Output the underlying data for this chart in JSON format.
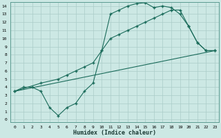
{
  "xlabel": "Humidex (Indice chaleur)",
  "background_color": "#cce8e4",
  "grid_color": "#aaccc8",
  "line_color": "#1a6b5a",
  "xlim": [
    -0.5,
    23.5
  ],
  "ylim": [
    -0.3,
    14.5
  ],
  "xticks": [
    0,
    1,
    2,
    3,
    4,
    5,
    6,
    7,
    8,
    9,
    10,
    11,
    12,
    13,
    14,
    15,
    16,
    17,
    18,
    19,
    20,
    21,
    22,
    23
  ],
  "yticks": [
    0,
    1,
    2,
    3,
    4,
    5,
    6,
    7,
    8,
    9,
    10,
    11,
    12,
    13,
    14
  ],
  "line1_x": [
    0,
    1,
    2,
    3,
    4,
    5,
    6,
    7,
    8,
    9,
    10,
    11,
    12,
    13,
    14,
    15,
    16,
    17,
    18,
    19,
    20,
    21,
    22,
    23
  ],
  "line1_y": [
    3.5,
    4.0,
    4.0,
    3.5,
    1.5,
    0.5,
    1.5,
    2.0,
    3.5,
    4.5,
    8.5,
    13.0,
    13.5,
    14.0,
    14.3,
    14.4,
    13.8,
    14.0,
    13.8,
    13.0,
    11.5,
    9.5,
    8.5,
    8.5
  ],
  "line2_x": [
    0,
    3,
    5,
    6,
    7,
    8,
    9,
    10,
    11,
    12,
    13,
    14,
    15,
    16,
    17,
    18,
    19,
    20,
    21,
    22,
    23
  ],
  "line2_y": [
    3.5,
    4.5,
    5.0,
    5.5,
    6.0,
    6.5,
    7.0,
    8.5,
    10.0,
    10.5,
    11.0,
    11.5,
    12.0,
    12.5,
    13.0,
    13.5,
    13.5,
    11.5,
    9.5,
    8.5,
    8.5
  ],
  "line3_x": [
    0,
    23
  ],
  "line3_y": [
    3.5,
    8.5
  ]
}
